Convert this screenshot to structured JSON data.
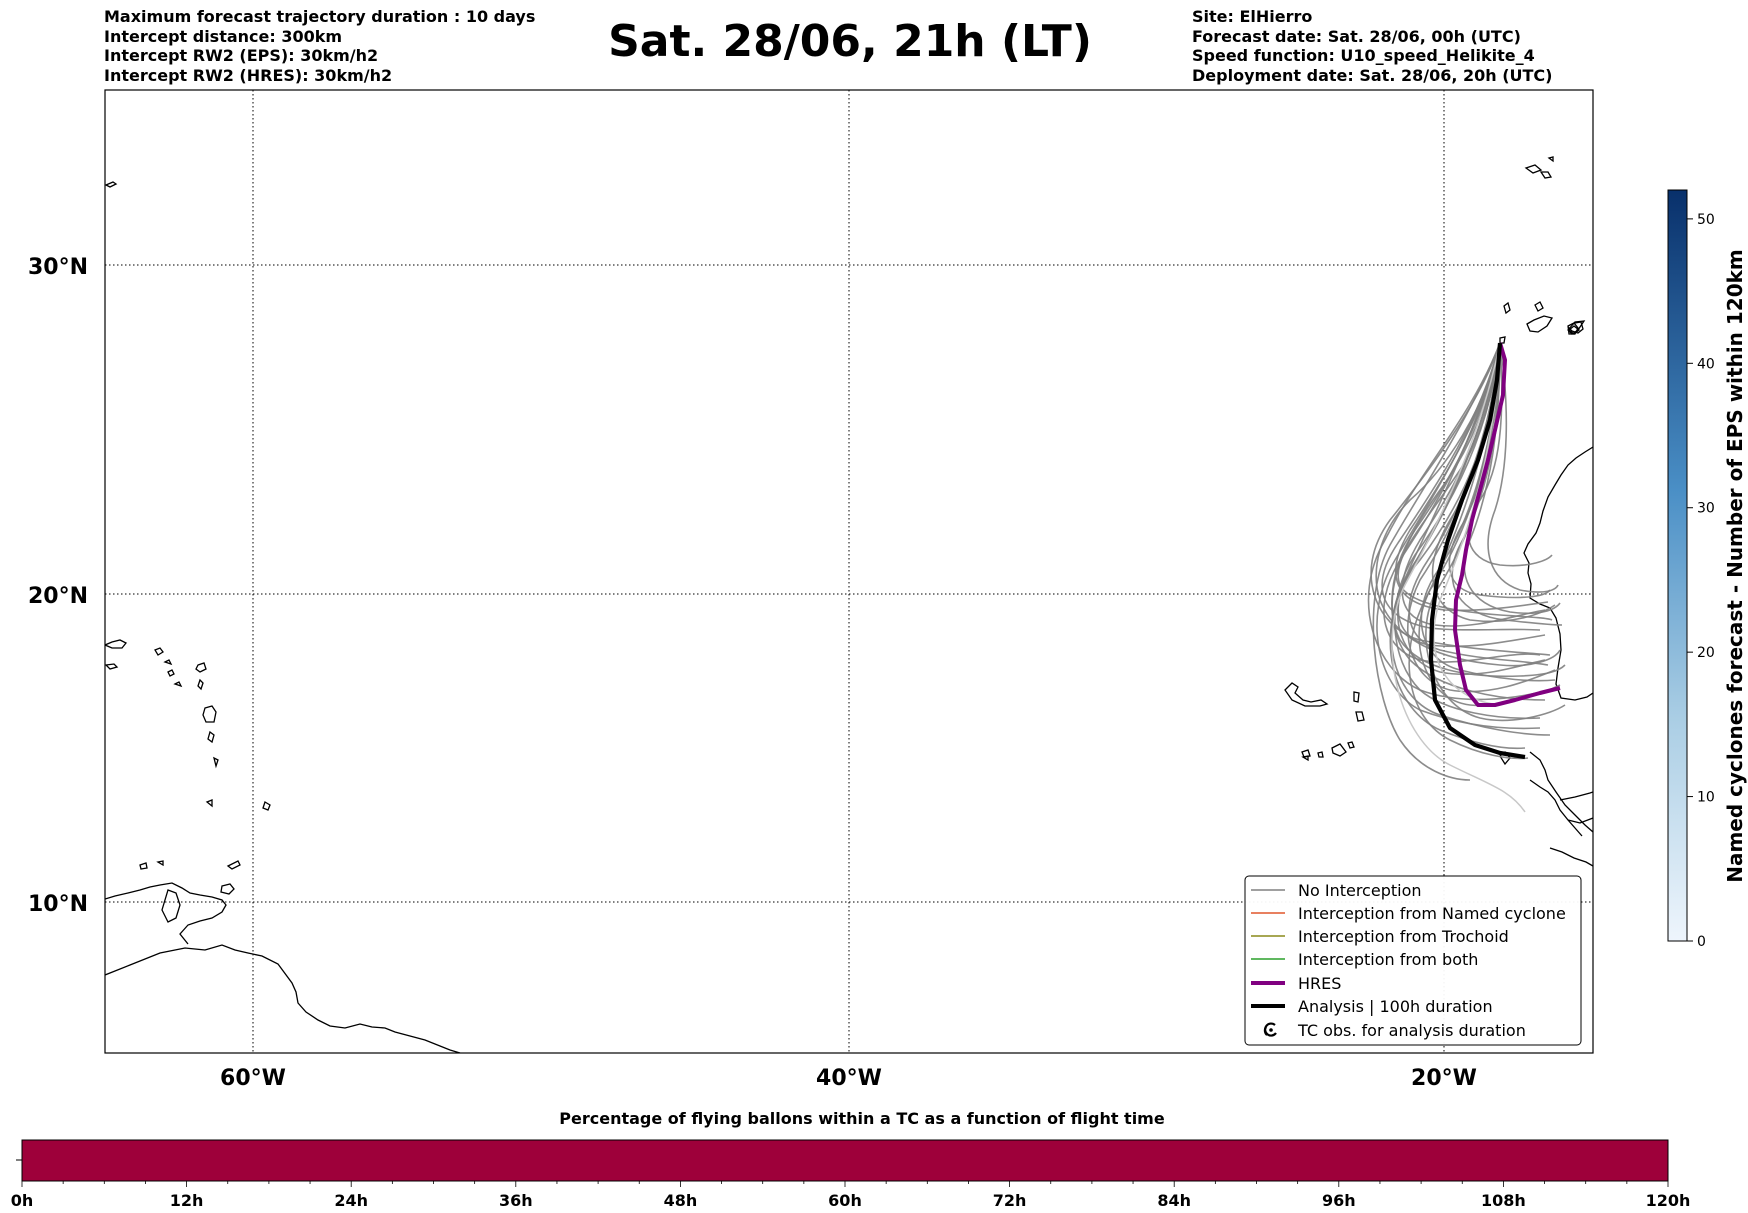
{
  "header_left": [
    "Maximum forecast trajectory duration : 10 days",
    "Intercept distance: 300km",
    "Intercept RW2 (EPS):  30km/h2",
    "Intercept RW2 (HRES): 30km/h2"
  ],
  "title": "Sat. 28/06, 21h (LT)",
  "header_right": [
    "Site: ElHierro",
    "Forecast date: Sat. 28/06, 00h (UTC)",
    "Speed function: U10_speed_Helikite_4",
    "Deployment date: Sat. 28/06, 20h (UTC)"
  ],
  "map": {
    "lat_labels": [
      "30°N",
      "20°N",
      "10°N"
    ],
    "lon_labels": [
      "60°W",
      "40°W",
      "20°W"
    ],
    "legend": [
      {
        "label": "No Interception",
        "color": "#808080",
        "style": "thin-line"
      },
      {
        "label": "Interception from Named cyclone",
        "color": "#e0562b",
        "style": "thin-line"
      },
      {
        "label": "Interception from Trochoid",
        "color": "#8a8a1a",
        "style": "thin-line"
      },
      {
        "label": "Interception from both",
        "color": "#2ca02c",
        "style": "thin-line"
      },
      {
        "label": "HRES",
        "color": "#800080",
        "style": "thick-line"
      },
      {
        "label": "Analysis | 100h duration",
        "color": "#000000",
        "style": "thick-line"
      },
      {
        "label": "TC obs. for analysis duration",
        "color": "#000000",
        "style": "cyclone-icon"
      }
    ]
  },
  "colorbar": {
    "label": "Named cyclones forecast - Number of EPS within 120km",
    "ticks": [
      "0",
      "10",
      "20",
      "30",
      "40",
      "50"
    ],
    "color_low": "#e8f1fb",
    "color_high": "#08306b"
  },
  "timebar": {
    "title": "Percentage of flying ballons within a TC as a function of flight time",
    "ticks": [
      "0h",
      "12h",
      "24h",
      "36h",
      "48h",
      "60h",
      "72h",
      "84h",
      "96h",
      "108h",
      "120h"
    ],
    "fill_color": "#9e003a"
  }
}
